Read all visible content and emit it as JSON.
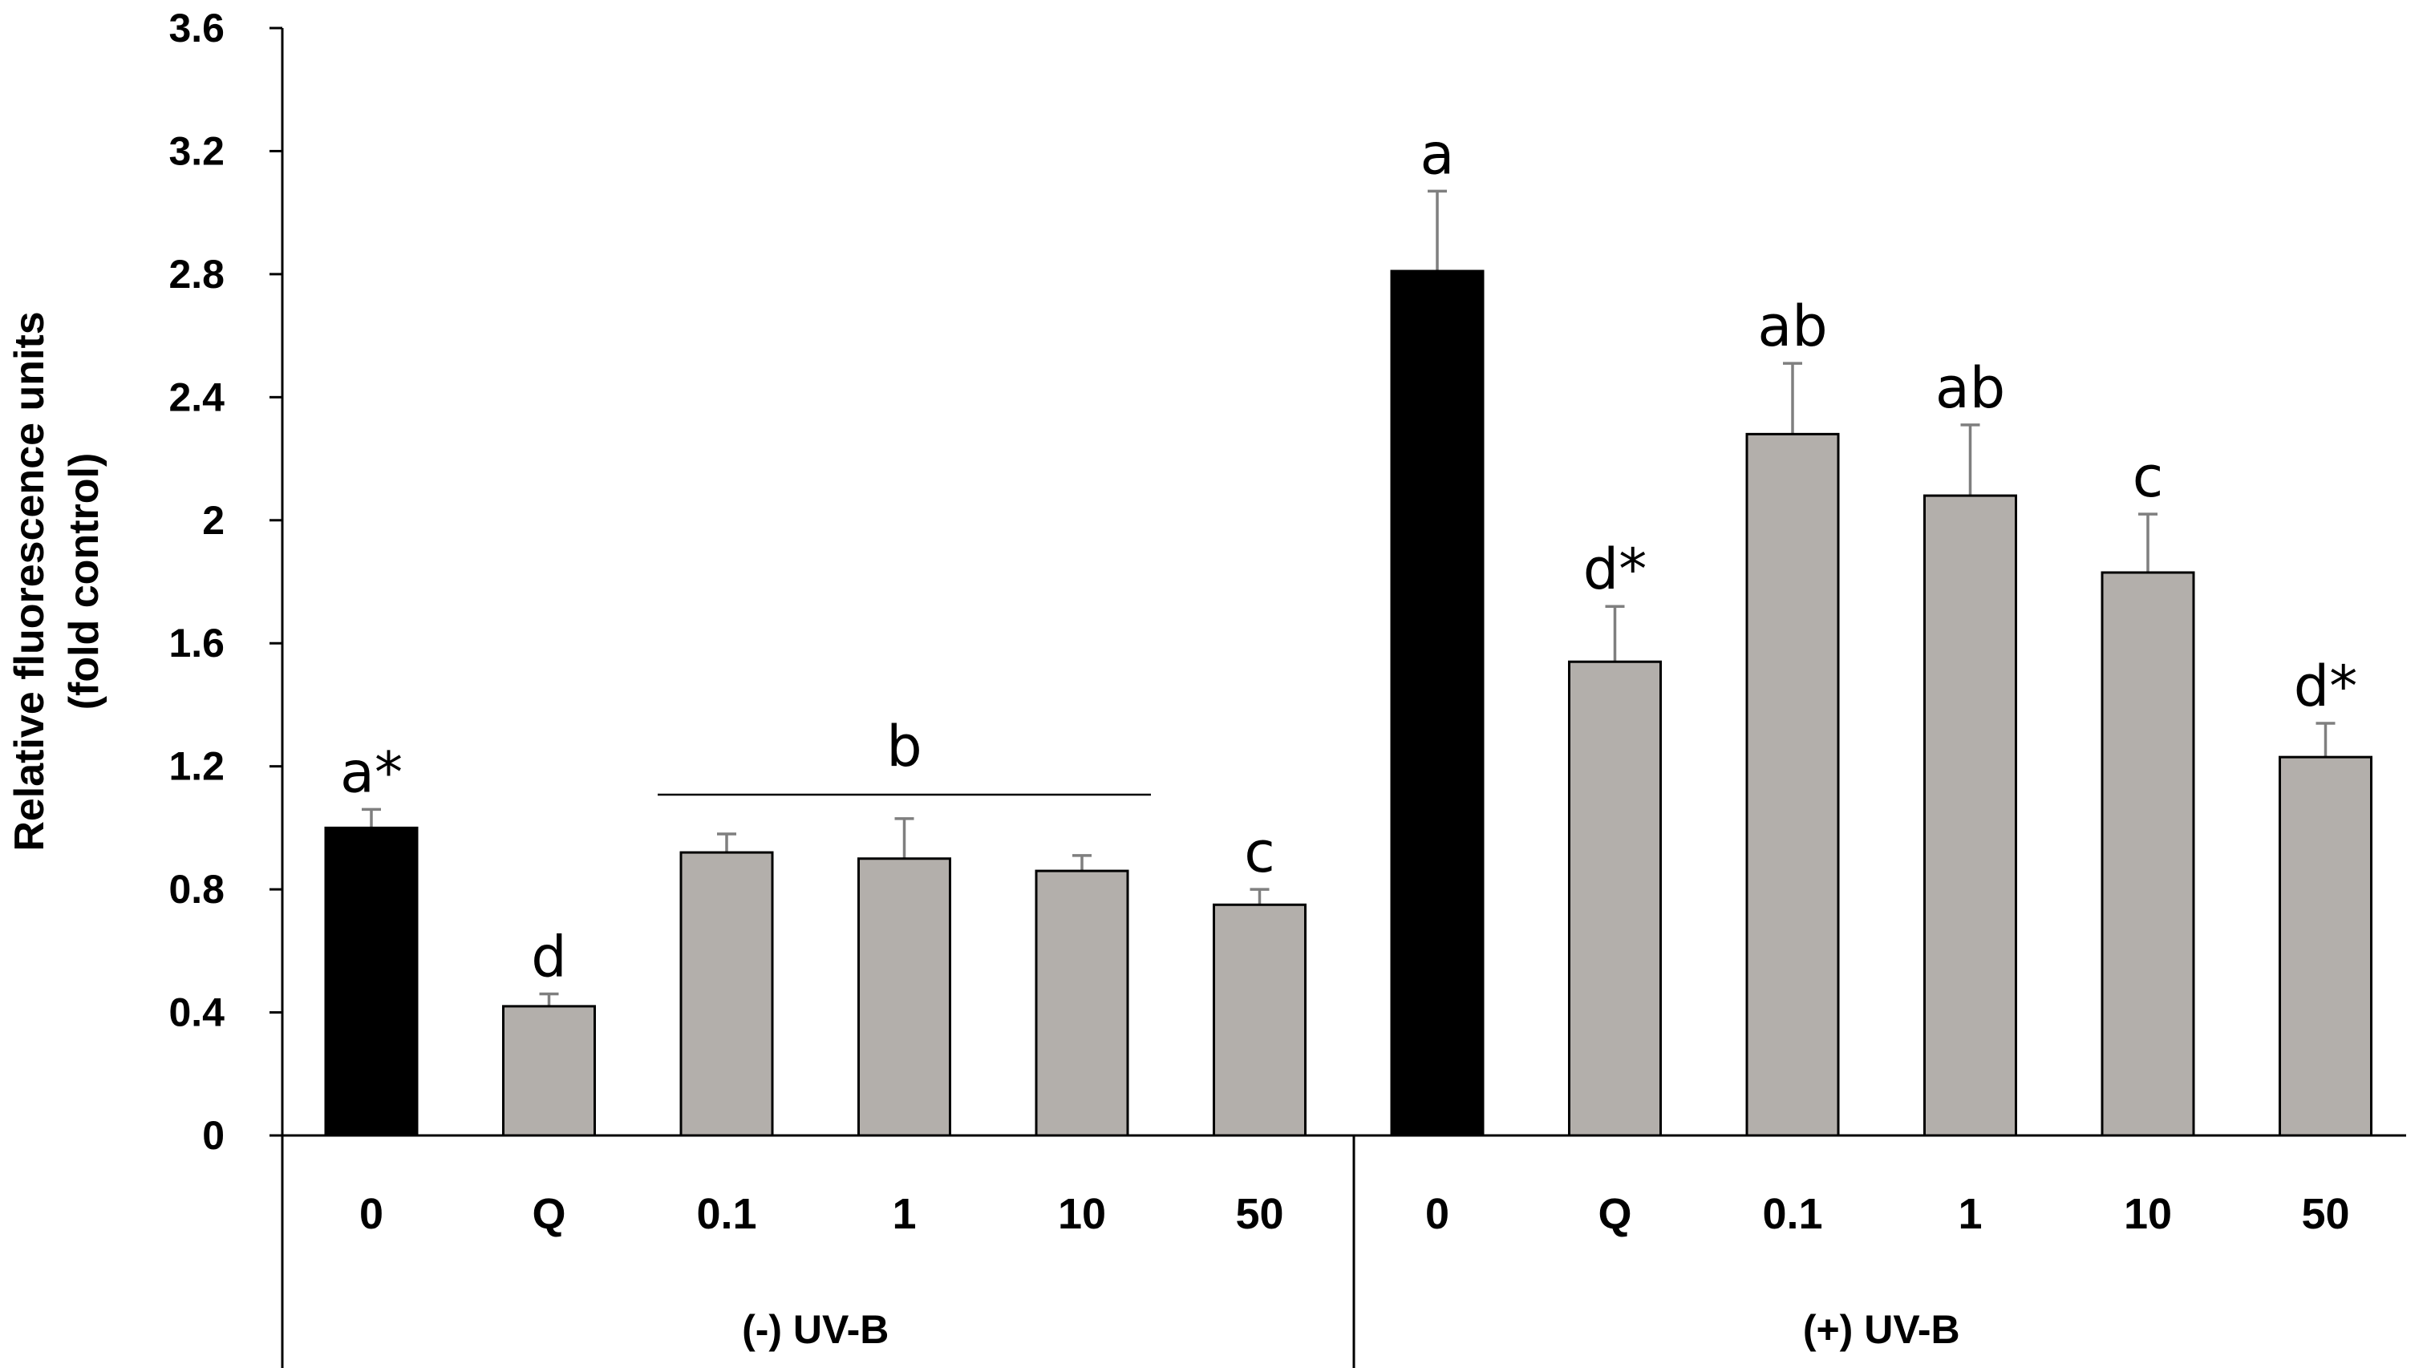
{
  "chart_data": {
    "type": "bar",
    "title": "",
    "ylabel": [
      "Relative fluorescence units",
      "(fold control)"
    ],
    "ylim": [
      0,
      3.6
    ],
    "yticks": [
      "0",
      "0.4",
      "0.8",
      "1.2",
      "1.6",
      "2",
      "2.4",
      "2.8",
      "3.2",
      "3.6"
    ],
    "grid": false,
    "groups": [
      {
        "label": "(-) UV-B",
        "categories": [
          "0",
          "Q",
          "0.1",
          "1",
          "10",
          "50"
        ],
        "values": [
          1.0,
          0.42,
          0.92,
          0.9,
          0.86,
          0.75
        ],
        "errors": [
          0.06,
          0.04,
          0.06,
          0.13,
          0.05,
          0.05
        ],
        "colors": [
          "#000000",
          "#b3afab",
          "#b3afab",
          "#b3afab",
          "#b3afab",
          "#b3afab"
        ],
        "labels": [
          "a*",
          "d",
          "",
          "",
          "",
          "c"
        ],
        "bracket": {
          "from": 2,
          "to": 4,
          "label": "b"
        }
      },
      {
        "label": "(+) UV-B",
        "categories": [
          "0",
          "Q",
          "0.1",
          "1",
          "10",
          "50"
        ],
        "values": [
          2.81,
          1.54,
          2.28,
          2.08,
          1.83,
          1.23
        ],
        "errors": [
          0.26,
          0.18,
          0.23,
          0.23,
          0.19,
          0.11
        ],
        "colors": [
          "#000000",
          "#b3afab",
          "#b3afab",
          "#b3afab",
          "#b3afab",
          "#b3afab"
        ],
        "labels": [
          "a",
          "d*",
          "ab",
          "ab",
          "c",
          "d*"
        ]
      }
    ]
  }
}
